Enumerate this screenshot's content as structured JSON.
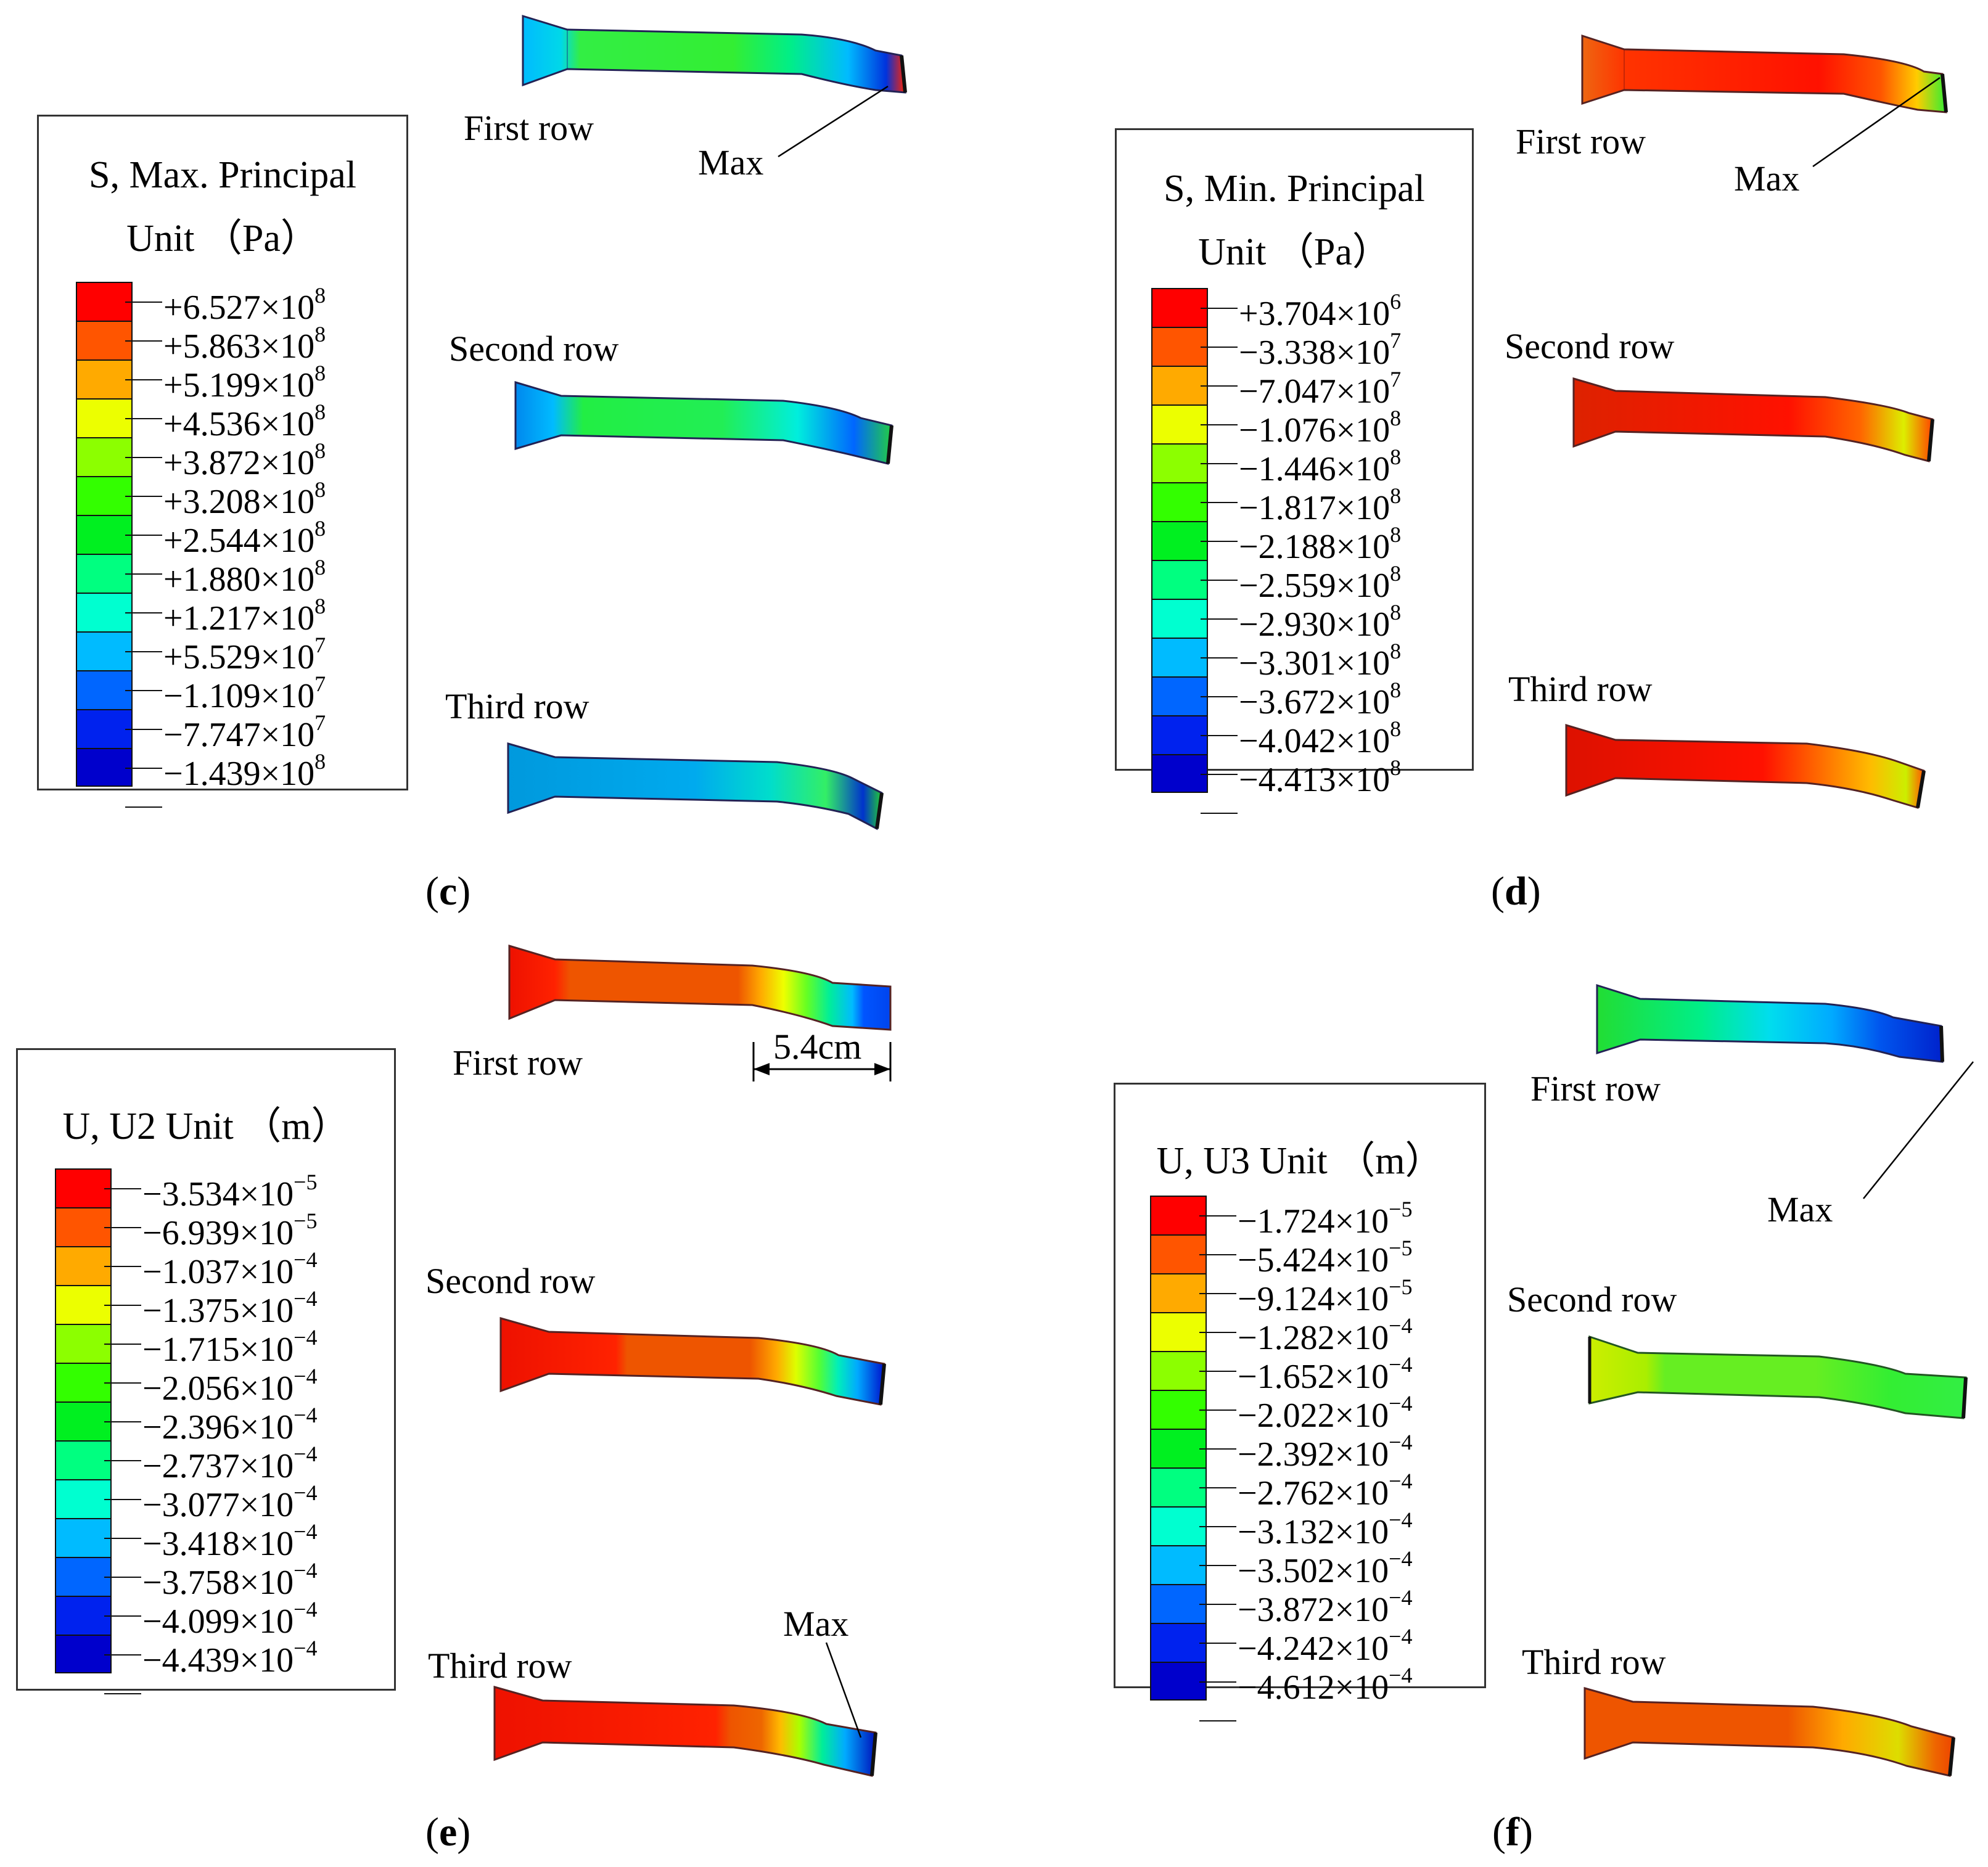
{
  "panels": [
    {
      "letter": "c",
      "legend_title_1": "S, Max. Principal",
      "legend_title_2": "Unit （Pa）",
      "legend": [
        {
          "mant": "+6.527×10",
          "exp": "8"
        },
        {
          "mant": "+5.863×10",
          "exp": "8"
        },
        {
          "mant": "+5.199×10",
          "exp": "8"
        },
        {
          "mant": "+4.536×10",
          "exp": "8"
        },
        {
          "mant": "+3.872×10",
          "exp": "8"
        },
        {
          "mant": "+3.208×10",
          "exp": "8"
        },
        {
          "mant": "+2.544×10",
          "exp": "8"
        },
        {
          "mant": "+1.880×10",
          "exp": "8"
        },
        {
          "mant": "+1.217×10",
          "exp": "8"
        },
        {
          "mant": "+5.529×10",
          "exp": "7"
        },
        {
          "mant": "−1.109×10",
          "exp": "7"
        },
        {
          "mant": "−7.747×10",
          "exp": "7"
        },
        {
          "mant": "−1.439×10",
          "exp": "8"
        }
      ],
      "rows": [
        "First row",
        "Second row",
        "Third row"
      ],
      "max_label": "Max"
    },
    {
      "letter": "d",
      "legend_title_1": "S, Min. Principal",
      "legend_title_2": "Unit （Pa）",
      "legend": [
        {
          "mant": "+3.704×10",
          "exp": "6"
        },
        {
          "mant": "−3.338×10",
          "exp": "7"
        },
        {
          "mant": "−7.047×10",
          "exp": "7"
        },
        {
          "mant": "−1.076×10",
          "exp": "8"
        },
        {
          "mant": "−1.446×10",
          "exp": "8"
        },
        {
          "mant": "−1.817×10",
          "exp": "8"
        },
        {
          "mant": "−2.188×10",
          "exp": "8"
        },
        {
          "mant": "−2.559×10",
          "exp": "8"
        },
        {
          "mant": "−2.930×10",
          "exp": "8"
        },
        {
          "mant": "−3.301×10",
          "exp": "8"
        },
        {
          "mant": "−3.672×10",
          "exp": "8"
        },
        {
          "mant": "−4.042×10",
          "exp": "8"
        },
        {
          "mant": "−4.413×10",
          "exp": "8"
        }
      ],
      "rows": [
        "First row",
        "Second row",
        "Third row"
      ],
      "max_label": "Max"
    },
    {
      "letter": "e",
      "legend_title_1": "U, U2  Unit （m）",
      "legend": [
        {
          "mant": "−3.534×10",
          "exp": "−5"
        },
        {
          "mant": "−6.939×10",
          "exp": "−5"
        },
        {
          "mant": "−1.037×10",
          "exp": "−4"
        },
        {
          "mant": "−1.375×10",
          "exp": "−4"
        },
        {
          "mant": "−1.715×10",
          "exp": "−4"
        },
        {
          "mant": "−2.056×10",
          "exp": "−4"
        },
        {
          "mant": "−2.396×10",
          "exp": "−4"
        },
        {
          "mant": "−2.737×10",
          "exp": "−4"
        },
        {
          "mant": "−3.077×10",
          "exp": "−4"
        },
        {
          "mant": "−3.418×10",
          "exp": "−4"
        },
        {
          "mant": "−3.758×10",
          "exp": "−4"
        },
        {
          "mant": "−4.099×10",
          "exp": "−4"
        },
        {
          "mant": "−4.439×10",
          "exp": "−4"
        }
      ],
      "rows": [
        "First row",
        "Second row",
        "Third row"
      ],
      "max_label": "Max",
      "dimension": "5.4cm"
    },
    {
      "letter": "f",
      "legend_title_1": "U, U3 Unit （m）",
      "legend": [
        {
          "mant": "−1.724×10",
          "exp": "−5"
        },
        {
          "mant": "−5.424×10",
          "exp": "−5"
        },
        {
          "mant": "−9.124×10",
          "exp": "−5"
        },
        {
          "mant": "−1.282×10",
          "exp": "−4"
        },
        {
          "mant": "−1.652×10",
          "exp": "−4"
        },
        {
          "mant": "−2.022×10",
          "exp": "−4"
        },
        {
          "mant": "−2.392×10",
          "exp": "−4"
        },
        {
          "mant": "−2.762×10",
          "exp": "−4"
        },
        {
          "mant": "−3.132×10",
          "exp": "−4"
        },
        {
          "mant": "−3.502×10",
          "exp": "−4"
        },
        {
          "mant": "−3.872×10",
          "exp": "−4"
        },
        {
          "mant": "−4.242×10",
          "exp": "−4"
        },
        {
          "mant": "−4.612×10",
          "exp": "−4"
        }
      ],
      "rows": [
        "First row",
        "Second row",
        "Third row"
      ],
      "max_label": "Max"
    }
  ],
  "colors": {
    "scale": [
      "#ff0000",
      "#ff5500",
      "#ffaa00",
      "#ecff00",
      "#8cff00",
      "#33ff00",
      "#00f020",
      "#00ff80",
      "#00ffd0",
      "#00bbff",
      "#0066ff",
      "#0022ee",
      "#0000cc"
    ]
  }
}
